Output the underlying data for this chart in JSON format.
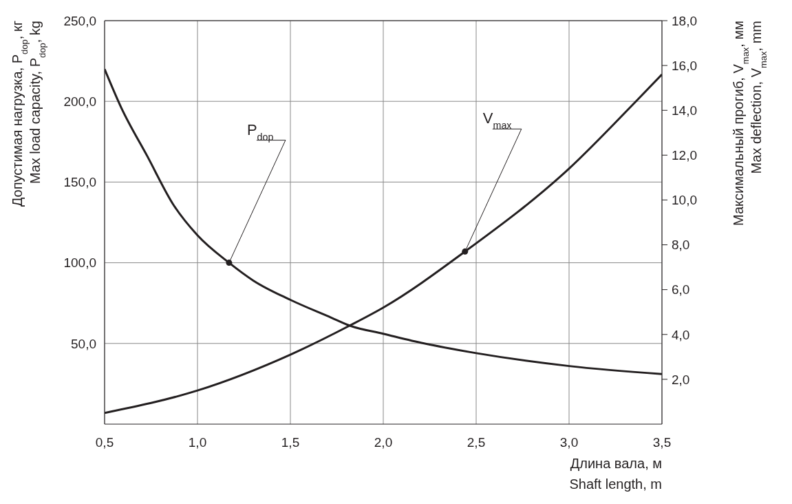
{
  "chart_data": {
    "type": "line",
    "xlabel": "Длина вала, м\nShaft length, m",
    "ylabel": "Допустимая нагрузка, P$_{dop}$, кг\nMax load capacity, P$_{dop}$, kg",
    "y2label": "Максимальный прогиб, V$_{max}$, мм\nMax deflection, V$_{max}$, mm",
    "xlim": [
      0.5,
      3.5
    ],
    "xticks": [
      {
        "value": 0.5,
        "label": "0,5"
      },
      {
        "value": 1,
        "label": "1,0"
      },
      {
        "value": 1.5,
        "label": "1,5"
      },
      {
        "value": 2,
        "label": "2,0"
      },
      {
        "value": 2.5,
        "label": "2,5"
      },
      {
        "value": 3,
        "label": "3,0"
      },
      {
        "value": 3.5,
        "label": "3,5"
      }
    ],
    "ylim": [
      0,
      250
    ],
    "yticks": [
      {
        "value": 50,
        "label": "50,0"
      },
      {
        "value": 100,
        "label": "100,0"
      },
      {
        "value": 150,
        "label": "150,0"
      },
      {
        "value": 200,
        "label": "200,0"
      },
      {
        "value": 250,
        "label": "250,0"
      }
    ],
    "y2lim": [
      0,
      18
    ],
    "y2ticks": [
      {
        "value": 2,
        "label": "2,0"
      },
      {
        "value": 4,
        "label": "4,0"
      },
      {
        "value": 6,
        "label": "6,0"
      },
      {
        "value": 8,
        "label": "8,0"
      },
      {
        "value": 10,
        "label": "10,0"
      },
      {
        "value": 12,
        "label": "12,0"
      },
      {
        "value": 14,
        "label": "14,0"
      },
      {
        "value": 16,
        "label": "16,0"
      },
      {
        "value": 18,
        "label": "18,0"
      }
    ],
    "grid": true,
    "series": [
      {
        "color": "#231f20",
        "x": [
          0.5,
          0.59,
          0.73,
          0.87,
          1.0,
          1.17,
          1.3,
          1.5,
          1.72,
          1.82,
          2.0,
          2.22,
          2.5,
          3.0,
          3.5
        ],
        "values": [
          220,
          196,
          166,
          136,
          117,
          100,
          89,
          77,
          66,
          61,
          56,
          50,
          44,
          36,
          31
        ]
      },
      {
        "color": "#231f20",
        "axis": "y2",
        "x": [
          0.5,
          1.0,
          1.5,
          1.82,
          2.0,
          2.44,
          3.0,
          3.36,
          3.5
        ],
        "values": [
          0.5,
          1.5,
          3.1,
          4.4,
          5.2,
          7.7,
          11.4,
          14.4,
          15.6
        ]
      }
    ],
    "annotations": [
      {
        "text": "P$_{dop}$",
        "x": 1.17
      },
      {
        "text": "V$_{max}$",
        "x": 2.44
      }
    ]
  }
}
